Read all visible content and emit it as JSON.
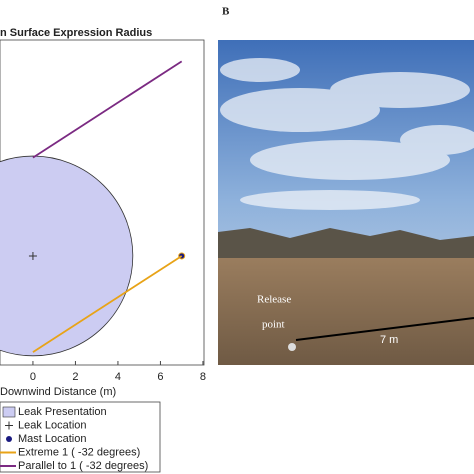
{
  "chart_data": {
    "type": "geometry",
    "title": "n Surface Expression Radius",
    "xlabel": "Downwind Distance (m)",
    "xlim": [
      -1.55,
      8.05
    ],
    "ylim": [
      -5.1,
      10.1
    ],
    "xticks": [
      0,
      2,
      4,
      6,
      8
    ],
    "series": [
      {
        "name": "Leak Presentation",
        "kind": "circle",
        "color": "#ccccf2",
        "x": [
          0
        ],
        "y": [
          0
        ],
        "radius": 4.7
      },
      {
        "name": "Leak Location",
        "kind": "plus",
        "color": "#333333",
        "x": [
          0
        ],
        "y": [
          0
        ]
      },
      {
        "name": "Mast Location",
        "kind": "dot",
        "color": "#1a1a80",
        "x": [
          7
        ],
        "y": [
          0
        ]
      },
      {
        "name": "Extreme 1 ( -32 degrees)",
        "kind": "line",
        "color": "#e8a317",
        "x": [
          0,
          7
        ],
        "y": [
          -4.5,
          0
        ]
      },
      {
        "name": "Parallel to 1 ( -32 degrees)",
        "kind": "line",
        "color": "#7b2a82",
        "x": [
          0,
          7
        ],
        "y": [
          4.6,
          9.1
        ]
      }
    ]
  },
  "photo": {
    "panel_label": "B",
    "annotation_line1": "Release",
    "annotation_line2": "point",
    "distance_label": "7 m"
  }
}
